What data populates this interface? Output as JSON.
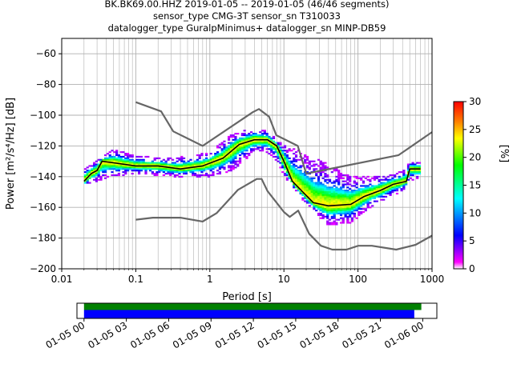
{
  "title": {
    "line1": "BK.BK69.00.HHZ   2019-01-05 -- 2019-01-05  (46/46 segments)",
    "line2": "sensor_type CMG-3T sensor_sn T310033",
    "line3": "datalogger_type GuralpMinimus+ datalogger_sn MINP-DB59"
  },
  "chart_data": [
    {
      "type": "heatmap",
      "title": "BK.BK69.00.HHZ   2019-01-05 -- 2019-01-05  (46/46 segments)",
      "xlabel": "Period [s]",
      "ylabel": "Power [m²/s⁴/Hz] [dB]",
      "xscale": "log",
      "xlim": [
        0.01,
        1000
      ],
      "ylim": [
        -200,
        -50
      ],
      "x_ticks": [
        {
          "value": 0.01,
          "label": "0.01"
        },
        {
          "value": 0.1,
          "label": "0.1"
        },
        {
          "value": 1,
          "label": "1"
        },
        {
          "value": 10,
          "label": "10"
        },
        {
          "value": 100,
          "label": "100"
        },
        {
          "value": 1000,
          "label": "1000"
        }
      ],
      "y_ticks": [
        {
          "value": -60,
          "label": "−60"
        },
        {
          "value": -80,
          "label": "−80"
        },
        {
          "value": -100,
          "label": "−100"
        },
        {
          "value": -120,
          "label": "−120"
        },
        {
          "value": -140,
          "label": "−140"
        },
        {
          "value": -160,
          "label": "−160"
        },
        {
          "value": -180,
          "label": "−180"
        },
        {
          "value": -200,
          "label": "−200"
        }
      ],
      "grid": true,
      "colorbar": {
        "label": "[%]",
        "range": [
          0,
          30
        ],
        "ticks": [
          {
            "value": 0,
            "label": "0"
          },
          {
            "value": 5,
            "label": "5"
          },
          {
            "value": 10,
            "label": "10"
          },
          {
            "value": 15,
            "label": "15"
          },
          {
            "value": 20,
            "label": "20"
          },
          {
            "value": 25,
            "label": "25"
          },
          {
            "value": 30,
            "label": "30"
          }
        ],
        "colormap": [
          "#ffffff",
          "#ff00ff",
          "#0000ff",
          "#00ffff",
          "#00ff00",
          "#ffff00",
          "#ff8000",
          "#ff0000"
        ]
      },
      "series": [
        {
          "name": "",
          "role": "noise_model_high",
          "color": "#666666",
          "points": [
            [
              0.1,
              -91.5
            ],
            [
              0.22,
              -97.5
            ],
            [
              0.32,
              -110.5
            ],
            [
              0.8,
              -120
            ],
            [
              3.8,
              -98
            ],
            [
              4.6,
              -96
            ],
            [
              6.3,
              -101
            ],
            [
              7.9,
              -113
            ],
            [
              15.4,
              -120
            ],
            [
              20,
              -138
            ],
            [
              354,
              -126
            ],
            [
              1000,
              -111
            ]
          ]
        },
        {
          "name": "",
          "role": "noise_model_low",
          "color": "#666666",
          "points": [
            [
              0.1,
              -168
            ],
            [
              0.17,
              -166.7
            ],
            [
              0.4,
              -166.7
            ],
            [
              0.8,
              -169.2
            ],
            [
              1.24,
              -163.7
            ],
            [
              2.4,
              -148.6
            ],
            [
              4.3,
              -141.5
            ],
            [
              5.0,
              -141.5
            ],
            [
              6.0,
              -149.4
            ],
            [
              10,
              -163
            ],
            [
              12,
              -166.2
            ],
            [
              15.6,
              -162.1
            ],
            [
              21.9,
              -177.2
            ],
            [
              31.6,
              -185
            ],
            [
              45,
              -187.5
            ],
            [
              70,
              -187.5
            ],
            [
              101,
              -185
            ],
            [
              154,
              -185
            ],
            [
              328,
              -187.5
            ],
            [
              600,
              -184.4
            ],
            [
              1000,
              -178.4
            ]
          ]
        },
        {
          "name": "",
          "role": "mode",
          "color": "#000000",
          "points": [
            [
              0.02,
              -143
            ],
            [
              0.025,
              -138
            ],
            [
              0.03,
              -136
            ],
            [
              0.035,
              -130
            ],
            [
              0.05,
              -131
            ],
            [
              0.1,
              -133
            ],
            [
              0.2,
              -133
            ],
            [
              0.4,
              -135
            ],
            [
              0.8,
              -133
            ],
            [
              1.5,
              -128
            ],
            [
              2.5,
              -119
            ],
            [
              4,
              -116
            ],
            [
              6,
              -116
            ],
            [
              8,
              -120
            ],
            [
              10,
              -130
            ],
            [
              13,
              -143
            ],
            [
              18,
              -150
            ],
            [
              25,
              -157
            ],
            [
              40,
              -159
            ],
            [
              80,
              -158
            ],
            [
              120,
              -153
            ],
            [
              200,
              -149
            ],
            [
              300,
              -145
            ],
            [
              450,
              -143
            ],
            [
              500,
              -135
            ],
            [
              700,
              -135
            ]
          ]
        }
      ],
      "density": {
        "spread_upper_db": [
          [
            0.02,
            -134
          ],
          [
            0.05,
            -122
          ],
          [
            0.1,
            -126
          ],
          [
            0.3,
            -128
          ],
          [
            1,
            -124
          ],
          [
            2,
            -112
          ],
          [
            4,
            -108
          ],
          [
            6,
            -110
          ],
          [
            8,
            -116
          ],
          [
            10,
            -119
          ],
          [
            20,
            -125
          ],
          [
            40,
            -132
          ],
          [
            80,
            -140
          ],
          [
            150,
            -140
          ],
          [
            300,
            -138
          ],
          [
            400,
            -136
          ],
          [
            500,
            -130
          ],
          [
            700,
            -130
          ]
        ],
        "spread_lower_db": [
          [
            0.02,
            -146
          ],
          [
            0.05,
            -140
          ],
          [
            0.1,
            -138
          ],
          [
            0.3,
            -140
          ],
          [
            1,
            -140
          ],
          [
            2,
            -136
          ],
          [
            4,
            -124
          ],
          [
            6,
            -124
          ],
          [
            8,
            -130
          ],
          [
            10,
            -140
          ],
          [
            20,
            -158
          ],
          [
            40,
            -172
          ],
          [
            80,
            -170
          ],
          [
            150,
            -160
          ],
          [
            300,
            -152
          ],
          [
            400,
            -150
          ],
          [
            500,
            -142
          ],
          [
            700,
            -142
          ]
        ]
      }
    },
    {
      "type": "bar",
      "title": "",
      "xlabel": "",
      "x_ticks": [
        "01-05 00",
        "01-05 03",
        "01-05 06",
        "01-05 09",
        "01-05 12",
        "01-05 15",
        "01-05 18",
        "01-05 21",
        "01-06 00"
      ],
      "xlim_hours": [
        -0.5,
        25
      ],
      "series": [
        {
          "name": "",
          "color": "#008000",
          "start_hours": 0,
          "end_hours": 23.9
        },
        {
          "name": "",
          "color": "#0000ff",
          "start_hours": 0,
          "end_hours": 23.4
        }
      ]
    }
  ]
}
